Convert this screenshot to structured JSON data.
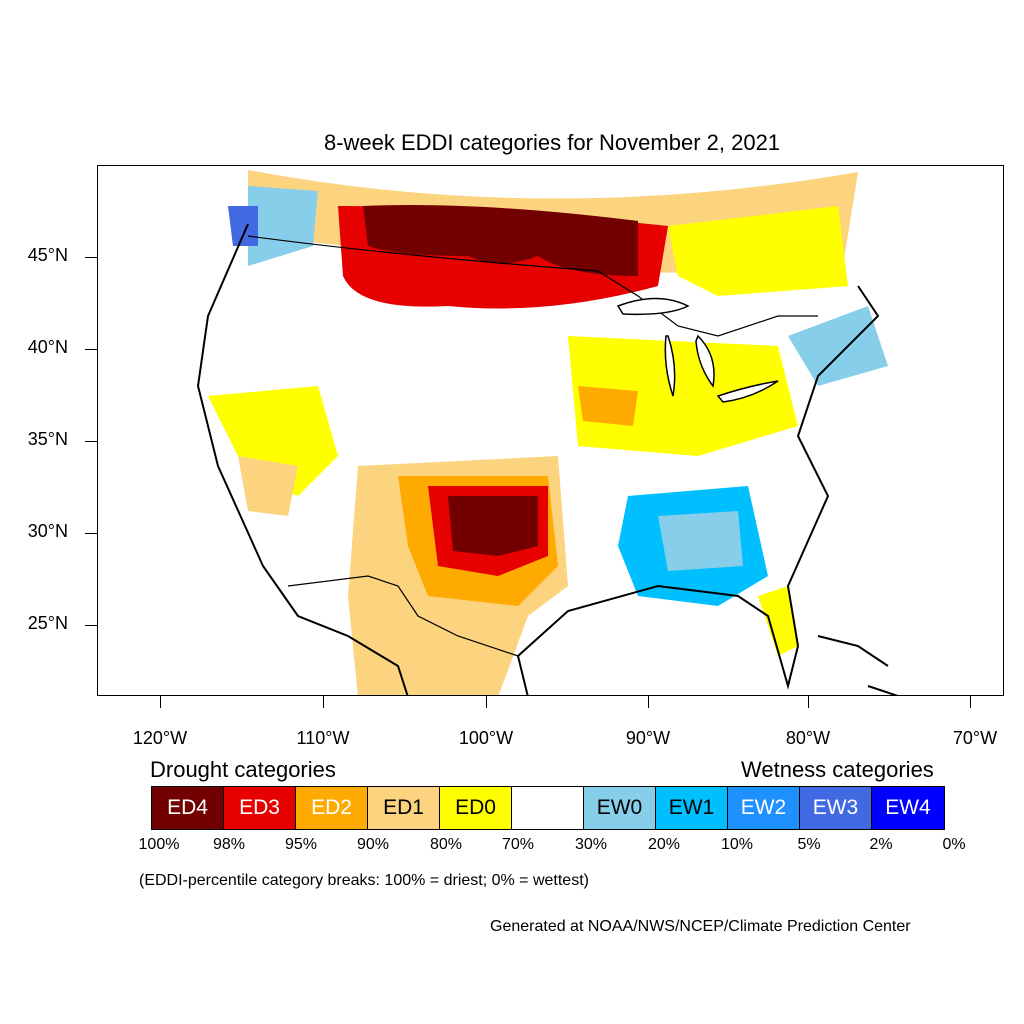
{
  "title": "8-week EDDI categories for November 2, 2021",
  "lat_labels": [
    "45°N",
    "40°N",
    "35°N",
    "30°N",
    "25°N"
  ],
  "lon_labels": [
    "120°W",
    "110°W",
    "100°W",
    "90°W",
    "80°W",
    "70°W"
  ],
  "legend": {
    "drought_heading": "Drought categories",
    "wetness_heading": "Wetness categories",
    "categories": [
      {
        "label": "ED4",
        "color": "#730000",
        "text_color": "#ffffff"
      },
      {
        "label": "ED3",
        "color": "#e60000",
        "text_color": "#ffffff"
      },
      {
        "label": "ED2",
        "color": "#ffaa00",
        "text_color": "#ffffff"
      },
      {
        "label": "ED1",
        "color": "#fcd37f",
        "text_color": "#000000"
      },
      {
        "label": "ED0",
        "color": "#ffff00",
        "text_color": "#000000"
      },
      {
        "label": "",
        "color": "#ffffff",
        "text_color": "#000000"
      },
      {
        "label": "EW0",
        "color": "#87ceeb",
        "text_color": "#000000"
      },
      {
        "label": "EW1",
        "color": "#00bfff",
        "text_color": "#000000"
      },
      {
        "label": "EW2",
        "color": "#1e90ff",
        "text_color": "#ffffff"
      },
      {
        "label": "EW3",
        "color": "#4169e1",
        "text_color": "#ffffff"
      },
      {
        "label": "EW4",
        "color": "#0000ff",
        "text_color": "#ffffff"
      }
    ],
    "breaks": [
      "100%",
      "98%",
      "95%",
      "90%",
      "80%",
      "70%",
      "30%",
      "20%",
      "10%",
      "5%",
      "2%",
      "0%"
    ]
  },
  "note": "(EDDI-percentile category breaks: 100% = driest; 0% = wettest)",
  "credit": "Generated at NOAA/NWS/NCEP/Climate Prediction Center"
}
